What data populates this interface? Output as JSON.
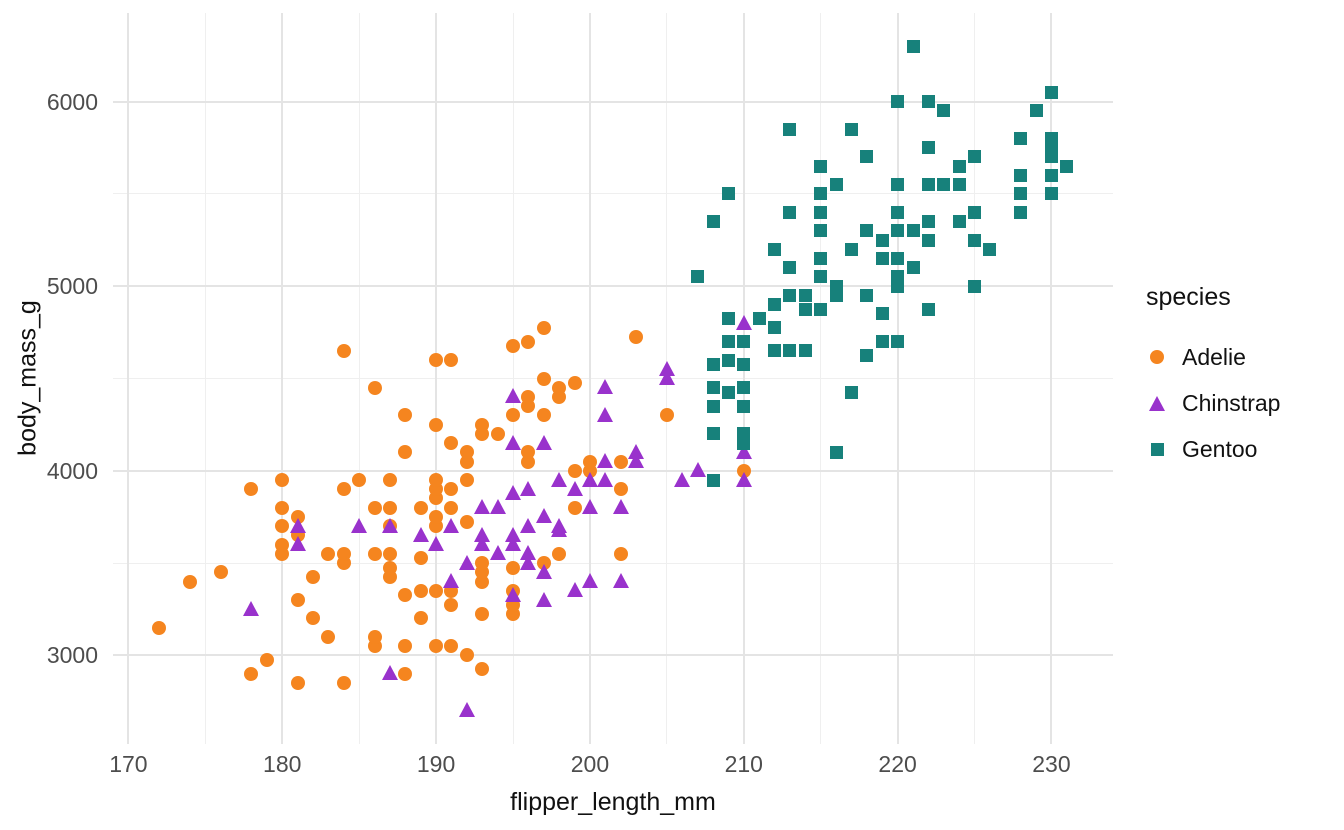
{
  "chart_data": {
    "type": "scatter",
    "xlabel": "flipper_length_mm",
    "ylabel": "body_mass_g",
    "xlim": [
      169,
      234
    ],
    "ylim": [
      2520,
      6480
    ],
    "x_ticks": [
      170,
      180,
      190,
      200,
      210,
      220,
      230
    ],
    "x_minor_ticks": [
      175,
      185,
      195,
      205,
      215,
      225
    ],
    "y_ticks": [
      3000,
      4000,
      5000,
      6000
    ],
    "y_minor_ticks": [
      3500,
      4500,
      5500
    ],
    "grid": true,
    "legend_position": "right",
    "legend_title": "species",
    "colors": {
      "grid_major": "#e4e4e4",
      "grid_minor": "#efefef",
      "tick_label": "#4d4d4d",
      "axis_title": "#111111",
      "background": "#ffffff"
    },
    "series": [
      {
        "name": "Adelie",
        "marker": "circle",
        "color": "#f5851f",
        "points": [
          [
            172,
            3150
          ],
          [
            174,
            3400
          ],
          [
            176,
            3450
          ],
          [
            178,
            2900
          ],
          [
            178,
            3900
          ],
          [
            179,
            2975
          ],
          [
            180,
            3550
          ],
          [
            180,
            3600
          ],
          [
            180,
            3700
          ],
          [
            180,
            3800
          ],
          [
            180,
            3950
          ],
          [
            181,
            2850
          ],
          [
            181,
            3300
          ],
          [
            181,
            3650
          ],
          [
            181,
            3750
          ],
          [
            182,
            3200
          ],
          [
            182,
            3425
          ],
          [
            183,
            3100
          ],
          [
            183,
            3550
          ],
          [
            184,
            2850
          ],
          [
            184,
            3500
          ],
          [
            184,
            3550
          ],
          [
            184,
            3900
          ],
          [
            184,
            4650
          ],
          [
            185,
            3950
          ],
          [
            186,
            3050
          ],
          [
            186,
            3100
          ],
          [
            186,
            3550
          ],
          [
            186,
            3800
          ],
          [
            186,
            4450
          ],
          [
            187,
            3425
          ],
          [
            187,
            3475
          ],
          [
            187,
            3550
          ],
          [
            187,
            3700
          ],
          [
            187,
            3800
          ],
          [
            187,
            3950
          ],
          [
            188,
            2900
          ],
          [
            188,
            3050
          ],
          [
            188,
            3325
          ],
          [
            188,
            4100
          ],
          [
            188,
            4300
          ],
          [
            189,
            3200
          ],
          [
            189,
            3350
          ],
          [
            189,
            3525
          ],
          [
            189,
            3800
          ],
          [
            190,
            3050
          ],
          [
            190,
            3350
          ],
          [
            190,
            3700
          ],
          [
            190,
            3750
          ],
          [
            190,
            3850
          ],
          [
            190,
            3900
          ],
          [
            190,
            3950
          ],
          [
            190,
            4250
          ],
          [
            190,
            4600
          ],
          [
            191,
            3050
          ],
          [
            191,
            3275
          ],
          [
            191,
            3350
          ],
          [
            191,
            3800
          ],
          [
            191,
            3900
          ],
          [
            191,
            4150
          ],
          [
            191,
            4600
          ],
          [
            192,
            3000
          ],
          [
            192,
            3725
          ],
          [
            192,
            3950
          ],
          [
            192,
            4050
          ],
          [
            192,
            4100
          ],
          [
            193,
            2925
          ],
          [
            193,
            3225
          ],
          [
            193,
            3400
          ],
          [
            193,
            3450
          ],
          [
            193,
            3500
          ],
          [
            193,
            4200
          ],
          [
            193,
            4250
          ],
          [
            194,
            4200
          ],
          [
            195,
            3225
          ],
          [
            195,
            3275
          ],
          [
            195,
            3350
          ],
          [
            195,
            3475
          ],
          [
            195,
            4300
          ],
          [
            195,
            4675
          ],
          [
            196,
            4050
          ],
          [
            196,
            4100
          ],
          [
            196,
            4350
          ],
          [
            196,
            4400
          ],
          [
            196,
            4700
          ],
          [
            197,
            3500
          ],
          [
            197,
            4300
          ],
          [
            197,
            4500
          ],
          [
            197,
            4775
          ],
          [
            198,
            3550
          ],
          [
            198,
            4400
          ],
          [
            198,
            4450
          ],
          [
            199,
            3800
          ],
          [
            199,
            4000
          ],
          [
            199,
            4475
          ],
          [
            200,
            4000
          ],
          [
            200,
            4050
          ],
          [
            202,
            3550
          ],
          [
            202,
            3900
          ],
          [
            202,
            4050
          ],
          [
            203,
            4725
          ],
          [
            205,
            4300
          ],
          [
            210,
            4000
          ]
        ]
      },
      {
        "name": "Chinstrap",
        "marker": "triangle",
        "color": "#9932cc",
        "points": [
          [
            178,
            3250
          ],
          [
            181,
            3600
          ],
          [
            181,
            3700
          ],
          [
            185,
            3700
          ],
          [
            187,
            2900
          ],
          [
            187,
            3700
          ],
          [
            189,
            3650
          ],
          [
            190,
            3600
          ],
          [
            191,
            3400
          ],
          [
            191,
            3700
          ],
          [
            192,
            2700
          ],
          [
            192,
            3500
          ],
          [
            193,
            3600
          ],
          [
            193,
            3650
          ],
          [
            193,
            3800
          ],
          [
            194,
            3550
          ],
          [
            194,
            3800
          ],
          [
            195,
            3325
          ],
          [
            195,
            3600
          ],
          [
            195,
            3650
          ],
          [
            195,
            3875
          ],
          [
            195,
            4150
          ],
          [
            195,
            4400
          ],
          [
            196,
            3500
          ],
          [
            196,
            3550
          ],
          [
            196,
            3700
          ],
          [
            196,
            3900
          ],
          [
            197,
            3300
          ],
          [
            197,
            3450
          ],
          [
            197,
            3750
          ],
          [
            197,
            4150
          ],
          [
            198,
            3675
          ],
          [
            198,
            3700
          ],
          [
            198,
            3950
          ],
          [
            199,
            3350
          ],
          [
            199,
            3900
          ],
          [
            200,
            3400
          ],
          [
            200,
            3800
          ],
          [
            200,
            3950
          ],
          [
            201,
            3950
          ],
          [
            201,
            4050
          ],
          [
            201,
            4300
          ],
          [
            201,
            4450
          ],
          [
            202,
            3400
          ],
          [
            202,
            3800
          ],
          [
            203,
            4050
          ],
          [
            203,
            4100
          ],
          [
            205,
            4500
          ],
          [
            205,
            4550
          ],
          [
            206,
            3950
          ],
          [
            207,
            4000
          ],
          [
            210,
            3950
          ],
          [
            210,
            4100
          ],
          [
            210,
            4800
          ]
        ]
      },
      {
        "name": "Gentoo",
        "marker": "square",
        "color": "#17817b",
        "points": [
          [
            207,
            5050
          ],
          [
            208,
            3950
          ],
          [
            208,
            4200
          ],
          [
            208,
            4350
          ],
          [
            208,
            4450
          ],
          [
            208,
            4575
          ],
          [
            208,
            5350
          ],
          [
            209,
            4425
          ],
          [
            209,
            4600
          ],
          [
            209,
            4700
          ],
          [
            209,
            4825
          ],
          [
            209,
            5500
          ],
          [
            210,
            4150
          ],
          [
            210,
            4200
          ],
          [
            210,
            4350
          ],
          [
            210,
            4450
          ],
          [
            210,
            4575
          ],
          [
            210,
            4700
          ],
          [
            211,
            4825
          ],
          [
            212,
            4650
          ],
          [
            212,
            4775
          ],
          [
            212,
            4900
          ],
          [
            212,
            5200
          ],
          [
            213,
            4650
          ],
          [
            213,
            4950
          ],
          [
            213,
            5100
          ],
          [
            213,
            5400
          ],
          [
            213,
            5850
          ],
          [
            214,
            4650
          ],
          [
            214,
            4875
          ],
          [
            214,
            4950
          ],
          [
            215,
            4875
          ],
          [
            215,
            5050
          ],
          [
            215,
            5150
          ],
          [
            215,
            5300
          ],
          [
            215,
            5400
          ],
          [
            215,
            5500
          ],
          [
            215,
            5650
          ],
          [
            216,
            4100
          ],
          [
            216,
            4950
          ],
          [
            216,
            5000
          ],
          [
            216,
            5550
          ],
          [
            217,
            4425
          ],
          [
            217,
            5200
          ],
          [
            217,
            5850
          ],
          [
            218,
            4625
          ],
          [
            218,
            4950
          ],
          [
            218,
            5300
          ],
          [
            218,
            5700
          ],
          [
            219,
            4700
          ],
          [
            219,
            4850
          ],
          [
            219,
            5150
          ],
          [
            219,
            5250
          ],
          [
            220,
            4700
          ],
          [
            220,
            5000
          ],
          [
            220,
            5050
          ],
          [
            220,
            5150
          ],
          [
            220,
            5300
          ],
          [
            220,
            5400
          ],
          [
            220,
            5550
          ],
          [
            220,
            6000
          ],
          [
            221,
            5100
          ],
          [
            221,
            5300
          ],
          [
            221,
            6300
          ],
          [
            222,
            4875
          ],
          [
            222,
            5250
          ],
          [
            222,
            5350
          ],
          [
            222,
            5550
          ],
          [
            222,
            5750
          ],
          [
            222,
            6000
          ],
          [
            223,
            5550
          ],
          [
            223,
            5950
          ],
          [
            224,
            5350
          ],
          [
            224,
            5550
          ],
          [
            224,
            5650
          ],
          [
            225,
            5000
          ],
          [
            225,
            5250
          ],
          [
            225,
            5400
          ],
          [
            225,
            5700
          ],
          [
            226,
            5200
          ],
          [
            228,
            5400
          ],
          [
            228,
            5500
          ],
          [
            228,
            5600
          ],
          [
            228,
            5800
          ],
          [
            229,
            5950
          ],
          [
            230,
            5500
          ],
          [
            230,
            5600
          ],
          [
            230,
            5700
          ],
          [
            230,
            5750
          ],
          [
            230,
            5800
          ],
          [
            230,
            6050
          ],
          [
            231,
            5650
          ]
        ]
      }
    ]
  }
}
